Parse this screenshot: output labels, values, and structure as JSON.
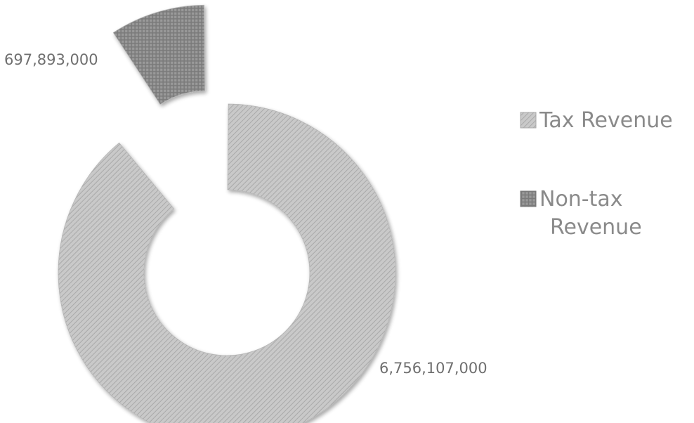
{
  "chart_data": {
    "type": "pie",
    "variant": "doughnut",
    "categories": [
      "Tax Revenue",
      "Non-tax Revenue"
    ],
    "values": [
      6756107000,
      697893000
    ],
    "data_labels": [
      "6,756,107,000",
      "697,893,000"
    ],
    "exploded": [
      "Non-tax Revenue"
    ],
    "legend": {
      "placement": "right",
      "entries": [
        "Tax Revenue",
        "Non-tax Revenue"
      ]
    },
    "title": ""
  },
  "colors": {
    "tax_fill": "#c9c9c9",
    "tax_hatch": "#a9a9a9",
    "nontax_fill": "#9a9a9a",
    "nontax_hatch": "#7a7a7a",
    "label_text": "#6f6f6f",
    "legend_text": "#8a8a8a"
  }
}
